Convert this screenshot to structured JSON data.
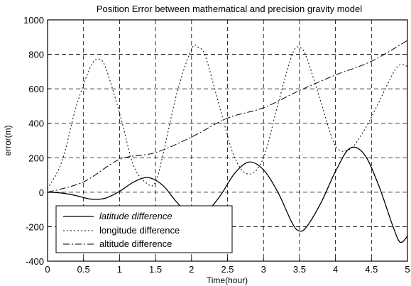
{
  "chart_data": {
    "type": "line",
    "title": "Position Error between mathematical and precision gravity model",
    "xlabel": "Time(hour)",
    "ylabel": "error(m)",
    "xlim": [
      0,
      5
    ],
    "ylim": [
      -400,
      1000
    ],
    "xticks": [
      "0",
      "0.5",
      "1",
      "1.5",
      "2",
      "2.5",
      "3",
      "3.5",
      "4",
      "4.5",
      "5"
    ],
    "yticks": [
      "-400",
      "-200",
      "0",
      "200",
      "400",
      "600",
      "800",
      "1000"
    ],
    "grid": true,
    "legend_position": "bottom-left",
    "series": [
      {
        "name": "latitude difference",
        "style": "solid",
        "x": [
          0,
          0.2,
          0.4,
          0.6,
          0.8,
          1.0,
          1.2,
          1.4,
          1.6,
          1.8,
          2.0,
          2.2,
          2.4,
          2.6,
          2.8,
          3.0,
          3.2,
          3.4,
          3.5,
          3.6,
          3.8,
          4.0,
          4.2,
          4.4,
          4.6,
          4.8,
          4.9,
          5.0
        ],
        "y": [
          0,
          -5,
          -20,
          -40,
          -35,
          5,
          60,
          85,
          40,
          -60,
          -140,
          -115,
          -20,
          110,
          175,
          130,
          0,
          -180,
          -225,
          -200,
          -60,
          120,
          255,
          220,
          40,
          -200,
          -290,
          -255
        ]
      },
      {
        "name": "longitude difference",
        "style": "dotted",
        "x": [
          0,
          0.2,
          0.4,
          0.6,
          0.7,
          0.8,
          1.0,
          1.2,
          1.4,
          1.5,
          1.6,
          1.8,
          2.0,
          2.1,
          2.2,
          2.4,
          2.6,
          2.8,
          3.0,
          3.2,
          3.4,
          3.5,
          3.6,
          3.8,
          4.0,
          4.2,
          4.4,
          4.6,
          4.8,
          4.9,
          5.0
        ],
        "y": [
          20,
          180,
          500,
          730,
          770,
          730,
          460,
          150,
          45,
          60,
          210,
          580,
          830,
          840,
          780,
          480,
          200,
          105,
          200,
          510,
          800,
          840,
          780,
          520,
          270,
          250,
          360,
          520,
          690,
          740,
          730
        ]
      },
      {
        "name": "altitude difference",
        "style": "dashdot",
        "x": [
          0,
          0.5,
          1.0,
          1.5,
          2.0,
          2.5,
          3.0,
          3.5,
          4.0,
          4.5,
          5.0
        ],
        "y": [
          0,
          60,
          190,
          230,
          320,
          430,
          490,
          590,
          680,
          760,
          880
        ]
      }
    ]
  }
}
